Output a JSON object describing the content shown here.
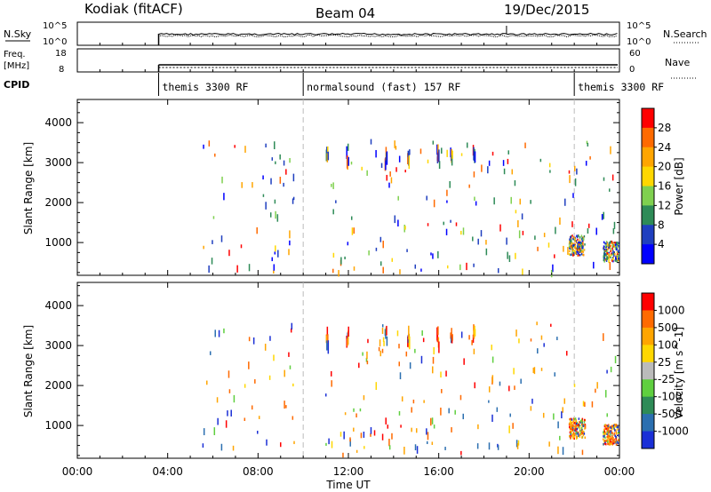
{
  "header": {
    "station": "Kodiak (fitACF)",
    "beam": "Beam 04",
    "date": "19/Dec/2015"
  },
  "noise_panel": {
    "left_label": "N.Sky",
    "right_label": "N.Search",
    "left_ticks": [
      "10^5",
      "10^0"
    ],
    "right_ticks": [
      "10^5",
      "10^0"
    ]
  },
  "freq_panel": {
    "left_label_1": "Freq.",
    "left_label_2": "[MHz]",
    "right_label": "Nave",
    "left_ticks": [
      "18",
      "8"
    ],
    "right_ticks": [
      "60",
      "0"
    ]
  },
  "cpid": {
    "label": "CPID",
    "modes": [
      {
        "name": "themis 3300 RF",
        "start_h": 3.6
      },
      {
        "name": "normalsound (fast) 157 RF",
        "start_h": 10.0
      },
      {
        "name": "themis 3300 RF",
        "start_h": 22.0
      }
    ]
  },
  "x_axis": {
    "label": "Time UT",
    "ticks": [
      "00:00",
      "04:00",
      "08:00",
      "12:00",
      "16:00",
      "20:00",
      "00:00"
    ],
    "range_h": [
      0,
      24
    ]
  },
  "chart_data": [
    {
      "type": "heatmap",
      "name": "power",
      "ylabel": "Slant Range [km]",
      "yticks": [
        "1000",
        "2000",
        "3000",
        "4000"
      ],
      "ylim": [
        180,
        4580
      ],
      "colorbar": {
        "label": "Power [dB]",
        "ticks": [
          "4",
          "8",
          "12",
          "16",
          "20",
          "24",
          "28"
        ],
        "colors": [
          "#0000ff",
          "#1f3fbf",
          "#2e8b57",
          "#7fd04f",
          "#ffd700",
          "#ffa500",
          "#ff6a00",
          "#ff0000"
        ]
      }
    },
    {
      "type": "heatmap",
      "name": "velocity",
      "ylabel": "Slant Range [km]",
      "yticks": [
        "1000",
        "2000",
        "3000",
        "4000"
      ],
      "ylim": [
        180,
        4580
      ],
      "colorbar": {
        "label": "Velocity [m s^-1]",
        "ticks": [
          "1000",
          "500",
          "100",
          "25",
          "-25",
          "-100",
          "-500",
          "-1000"
        ],
        "colors": [
          "#1a2fd6",
          "#2b6fb0",
          "#2e8b57",
          "#5fcf3f",
          "#bbbbbb",
          "#ffd700",
          "#ffa500",
          "#ff6a00",
          "#ff0000"
        ]
      }
    }
  ]
}
